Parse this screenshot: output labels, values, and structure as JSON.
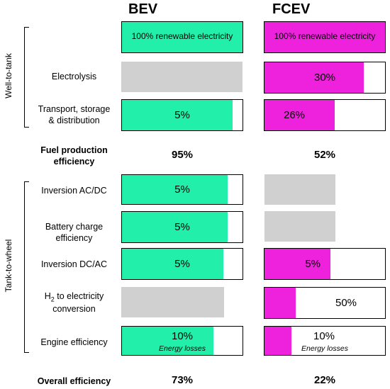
{
  "colors": {
    "bev": "#22f0aa",
    "fcev": "#ee22dd",
    "grey": "#d0d0d0"
  },
  "headers": {
    "bev": "BEV",
    "fcev": "FCEV"
  },
  "groups": {
    "wtt": "Well-to-tank",
    "ttw": "Tank-to-wheel"
  },
  "rows": {
    "r1": {
      "label": "",
      "bev": "100% renewable electricity",
      "fcev": "100% renewable electricity"
    },
    "r2": {
      "label": "Electrolysis",
      "bev": "",
      "fcev": "30%"
    },
    "r3": {
      "label_l1": "Transport, storage",
      "label_l2": "& distribution",
      "bev": "5%",
      "fcev": "26%"
    },
    "r4": {
      "label": "Inversion AC/DC",
      "bev": "5%",
      "fcev": ""
    },
    "r5": {
      "label_l1": "Battery charge",
      "label_l2": "efficiency",
      "bev": "5%",
      "fcev": ""
    },
    "r6": {
      "label": "Inversion DC/AC",
      "bev": "5%",
      "fcev": "5%"
    },
    "r7": {
      "label_pre": "H",
      "label_sub": "2",
      "label_post": " to electricity",
      "label_l2": "conversion",
      "bev": "",
      "fcev": "50%"
    },
    "r8": {
      "label": "Engine efficiency",
      "bev": "10%",
      "fcev": "10%",
      "note": "Energy losses"
    }
  },
  "summary": {
    "fuel_l1": "Fuel production",
    "fuel_l2": "efficiency",
    "fuel_bev": "95%",
    "fuel_fcev": "52%",
    "overall": "Overall efficiency",
    "overall_bev": "73%",
    "overall_fcev": "22%"
  }
}
